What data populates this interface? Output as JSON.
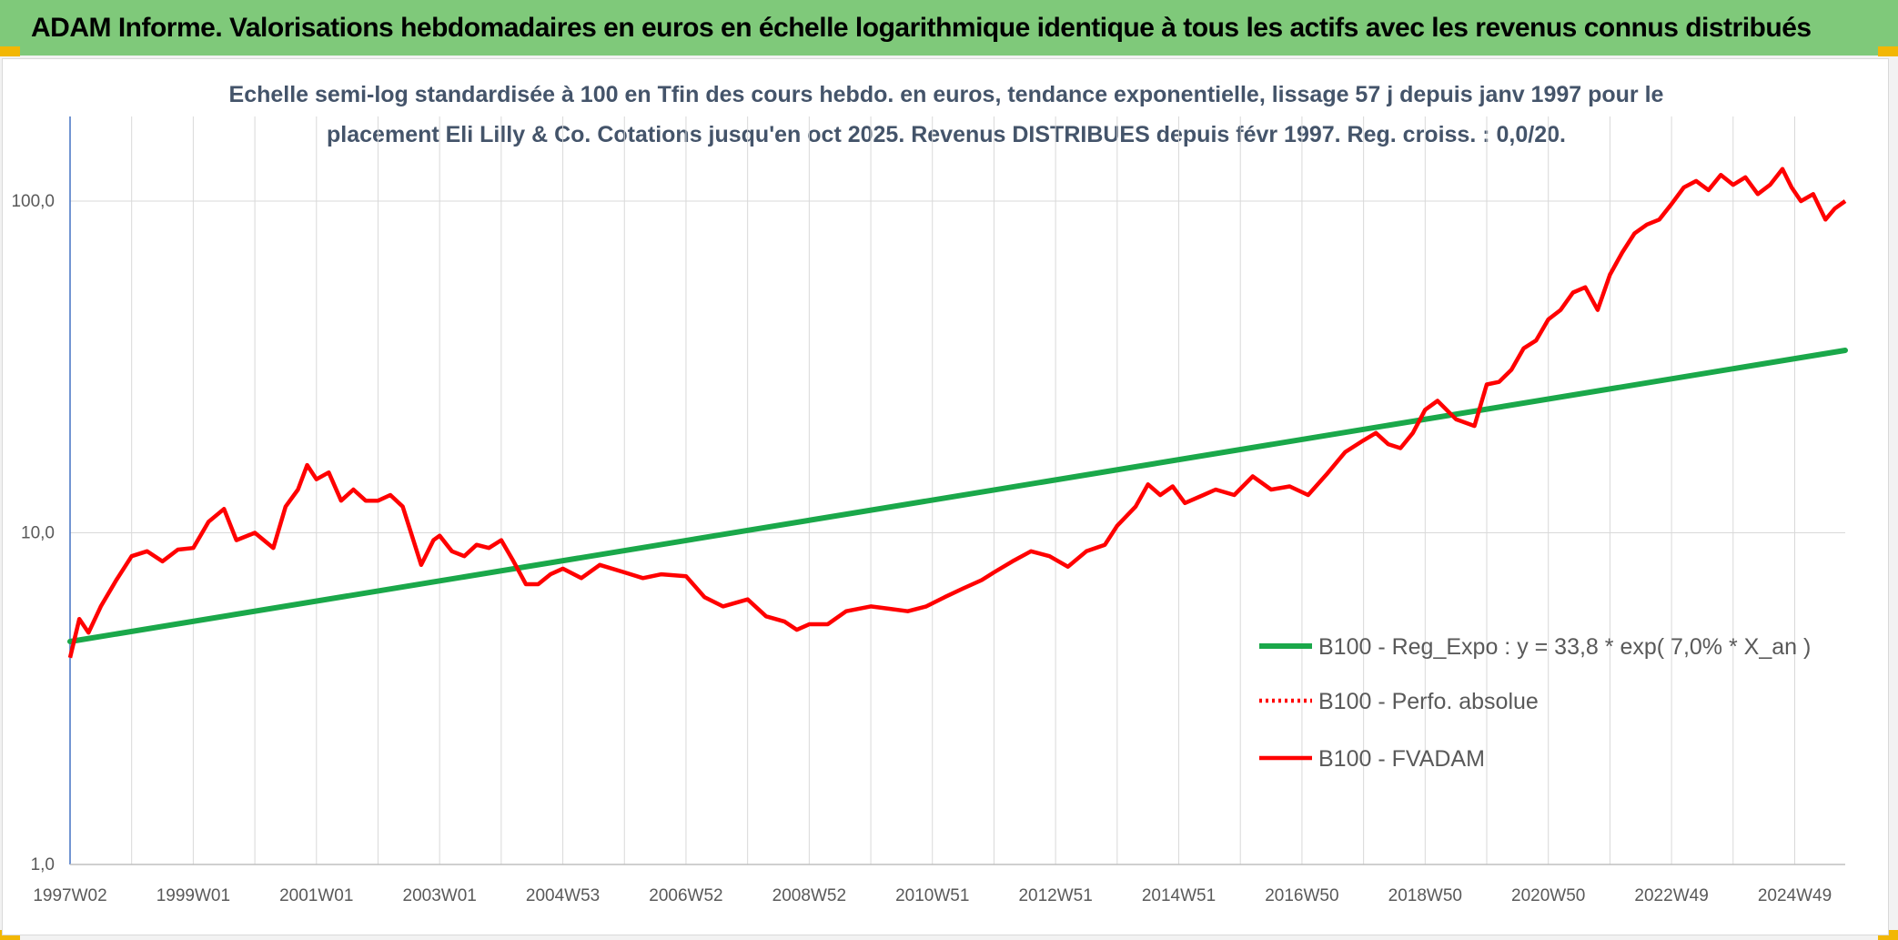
{
  "header": {
    "title": "ADAM Informe. Valorisations hebdomadaires en euros en échelle logarithmique identique à tous les actifs avec les revenus connus distribués"
  },
  "chart_data": {
    "type": "line",
    "subtitle_line1": "Echelle semi-log standardisée à 100 en Tfin des cours hebdo. en euros, tendance exponentielle, lissage 57 j depuis janv 1997 pour le",
    "subtitle_line2": "placement Eli Lilly & Co. Cotations jusqu'en oct 2025. Revenus DISTRIBUES depuis févr 1997. Reg. croiss. : 0,0/20.",
    "y_scale": "log",
    "ylim": [
      1,
      180
    ],
    "y_ticks": [
      1,
      10,
      100
    ],
    "y_tick_labels": [
      "1,0",
      "10,0",
      "100,0"
    ],
    "xlim": [
      1997.0,
      2025.82
    ],
    "x_ticks": [
      1997.0,
      1999.0,
      2001.0,
      2003.0,
      2005.0,
      2007.0,
      2009.0,
      2011.0,
      2013.0,
      2015.0,
      2017.0,
      2019.0,
      2021.0,
      2023.0,
      2025.0
    ],
    "x_tick_labels": [
      "1997W02",
      "1999W01",
      "2001W01",
      "2003W01",
      "2004W53",
      "2006W52",
      "2008W52",
      "2010W51",
      "2012W51",
      "2014W51",
      "2016W50",
      "2018W50",
      "2020W50",
      "2022W49",
      "2024W49"
    ],
    "grid": true,
    "legend_position": "right",
    "colors": {
      "trend": "#1aa84a",
      "fvadam": "#ff0000",
      "perfo": "#ff0000"
    },
    "series": [
      {
        "name": "B100 - Reg_Expo : y = 33,8 * exp( 7,0% *  X_an )",
        "style": "solid",
        "x": [
          1997.0,
          2025.82
        ],
        "y": [
          4.7,
          35.5
        ]
      },
      {
        "name": "B100 - Perfo. absolue",
        "style": "dotted",
        "x": [],
        "y": []
      },
      {
        "name": "B100 - FVADAM",
        "style": "solid",
        "x": [
          1997.0,
          1997.15,
          1997.3,
          1997.5,
          1997.75,
          1998.0,
          1998.25,
          1998.5,
          1998.75,
          1999.0,
          1999.25,
          1999.5,
          1999.7,
          2000.0,
          2000.3,
          2000.5,
          2000.7,
          2000.85,
          2001.0,
          2001.2,
          2001.4,
          2001.6,
          2001.8,
          2002.0,
          2002.2,
          2002.4,
          2002.5,
          2002.7,
          2002.9,
          2003.0,
          2003.2,
          2003.4,
          2003.6,
          2003.8,
          2004.0,
          2004.2,
          2004.4,
          2004.6,
          2004.8,
          2005.0,
          2005.3,
          2005.6,
          2006.0,
          2006.3,
          2006.6,
          2007.0,
          2007.3,
          2007.6,
          2008.0,
          2008.3,
          2008.6,
          2008.8,
          2009.0,
          2009.3,
          2009.6,
          2010.0,
          2010.3,
          2010.6,
          2010.9,
          2011.2,
          2011.5,
          2011.8,
          2012.0,
          2012.3,
          2012.6,
          2012.9,
          2013.2,
          2013.5,
          2013.8,
          2014.0,
          2014.3,
          2014.5,
          2014.7,
          2014.9,
          2015.1,
          2015.4,
          2015.6,
          2015.9,
          2016.2,
          2016.5,
          2016.8,
          2017.1,
          2017.4,
          2017.7,
          2018.0,
          2018.2,
          2018.4,
          2018.6,
          2018.8,
          2019.0,
          2019.2,
          2019.5,
          2019.8,
          2020.0,
          2020.2,
          2020.4,
          2020.6,
          2020.8,
          2021.0,
          2021.2,
          2021.4,
          2021.6,
          2021.8,
          2022.0,
          2022.2,
          2022.4,
          2022.6,
          2022.8,
          2023.0,
          2023.2,
          2023.4,
          2023.6,
          2023.8,
          2024.0,
          2024.2,
          2024.4,
          2024.6,
          2024.8,
          2024.95,
          2025.1,
          2025.3,
          2025.5,
          2025.65,
          2025.82
        ],
        "y": [
          4.2,
          5.5,
          5.0,
          6.0,
          7.2,
          8.5,
          8.8,
          8.2,
          8.9,
          9.0,
          10.8,
          11.8,
          9.5,
          10.0,
          9.0,
          12.0,
          13.5,
          16.0,
          14.5,
          15.2,
          12.5,
          13.5,
          12.5,
          12.5,
          13.0,
          12.0,
          10.5,
          8.0,
          9.5,
          9.8,
          8.8,
          8.5,
          9.2,
          9.0,
          9.5,
          8.2,
          7.0,
          7.0,
          7.5,
          7.8,
          7.3,
          8.0,
          7.6,
          7.3,
          7.5,
          7.4,
          6.4,
          6.0,
          6.3,
          5.6,
          5.4,
          5.1,
          5.3,
          5.3,
          5.8,
          6.0,
          5.9,
          5.8,
          6.0,
          6.4,
          6.8,
          7.2,
          7.6,
          8.2,
          8.8,
          8.5,
          7.9,
          8.8,
          9.2,
          10.5,
          12.0,
          14.0,
          13.0,
          13.8,
          12.3,
          13.0,
          13.5,
          13.0,
          14.8,
          13.5,
          13.8,
          13.0,
          15.0,
          17.5,
          19.0,
          20.0,
          18.5,
          18.0,
          20.0,
          23.5,
          25.0,
          22.0,
          21.0,
          28.0,
          28.5,
          31.0,
          36.0,
          38.0,
          44.0,
          47.0,
          53.0,
          55.0,
          47.0,
          60.0,
          70.0,
          80.0,
          85.0,
          88.0,
          98.0,
          110.0,
          115.0,
          108.0,
          120.0,
          112.0,
          118.0,
          105.0,
          112.0,
          125.0,
          110.0,
          100.0,
          105.0,
          88.0,
          95.0,
          100.0
        ]
      }
    ]
  }
}
